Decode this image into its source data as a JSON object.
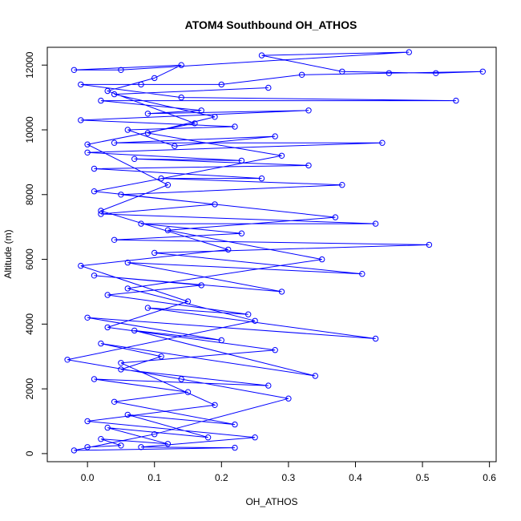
{
  "chart_data": {
    "type": "line",
    "title": "ATOM4 Southbound OH_ATHOS",
    "xlabel": "OH_ATHOS",
    "ylabel": "Altitude (m)",
    "xlim": [
      -0.06,
      0.61
    ],
    "ylim": [
      -250,
      12550
    ],
    "x_ticks": [
      0.0,
      0.1,
      0.2,
      0.3,
      0.4,
      0.5,
      0.6
    ],
    "x_tick_labels": [
      "0.0",
      "0.1",
      "0.2",
      "0.3",
      "0.4",
      "0.5",
      "0.6"
    ],
    "y_ticks": [
      0,
      2000,
      4000,
      6000,
      8000,
      10000,
      12000
    ],
    "y_tick_labels": [
      "0",
      "2000",
      "4000",
      "6000",
      "8000",
      "10000",
      "12000"
    ],
    "grid": false,
    "series_color": "#0000ff",
    "marker": "open-circle",
    "series": [
      {
        "points": [
          [
            0.0,
            200
          ],
          [
            0.05,
            250
          ],
          [
            0.02,
            450
          ],
          [
            0.12,
            300
          ],
          [
            0.03,
            800
          ],
          [
            0.18,
            500
          ],
          [
            0.06,
            1200
          ],
          [
            0.22,
            900
          ],
          [
            0.04,
            1600
          ],
          [
            0.15,
            1900
          ],
          [
            0.01,
            2300
          ],
          [
            0.27,
            2100
          ],
          [
            0.05,
            2600
          ],
          [
            0.11,
            3000
          ],
          [
            0.02,
            3400
          ],
          [
            0.34,
            2400
          ],
          [
            0.07,
            3800
          ],
          [
            0.2,
            3500
          ],
          [
            0.0,
            4200
          ],
          [
            0.43,
            3550
          ],
          [
            0.09,
            4500
          ],
          [
            0.24,
            4300
          ],
          [
            0.03,
            4900
          ],
          [
            0.17,
            5200
          ],
          [
            0.01,
            5500
          ],
          [
            0.29,
            5000
          ],
          [
            0.06,
            5900
          ],
          [
            0.41,
            5550
          ],
          [
            0.1,
            6200
          ],
          [
            0.51,
            6450
          ],
          [
            0.04,
            6600
          ],
          [
            0.23,
            6800
          ],
          [
            0.08,
            7100
          ],
          [
            0.43,
            7100
          ],
          [
            0.02,
            7400
          ],
          [
            0.19,
            7700
          ],
          [
            0.05,
            8000
          ],
          [
            0.38,
            8300
          ],
          [
            0.11,
            8500
          ],
          [
            0.26,
            8500
          ],
          [
            0.01,
            8800
          ],
          [
            0.33,
            8900
          ],
          [
            0.07,
            9100
          ],
          [
            0.23,
            9050
          ],
          [
            0.0,
            9300
          ],
          [
            0.44,
            9600
          ],
          [
            0.04,
            9600
          ],
          [
            0.28,
            9800
          ],
          [
            0.13,
            9500
          ],
          [
            0.06,
            10000
          ],
          [
            0.22,
            10100
          ],
          [
            -0.01,
            10300
          ],
          [
            0.33,
            10600
          ],
          [
            0.09,
            10500
          ],
          [
            0.17,
            10600
          ],
          [
            0.02,
            10900
          ],
          [
            0.55,
            10900
          ],
          [
            0.14,
            11000
          ],
          [
            -0.01,
            11400
          ],
          [
            0.08,
            11400
          ],
          [
            0.2,
            11400
          ],
          [
            0.32,
            11700
          ],
          [
            0.45,
            11750
          ],
          [
            0.59,
            11800
          ],
          [
            0.52,
            11750
          ],
          [
            0.38,
            11800
          ],
          [
            0.26,
            12300
          ],
          [
            0.48,
            12400
          ],
          [
            0.05,
            11850
          ],
          [
            -0.02,
            11850
          ],
          [
            0.14,
            12000
          ],
          [
            0.1,
            11600
          ],
          [
            0.03,
            11200
          ],
          [
            0.16,
            10200
          ],
          [
            0.0,
            9550
          ],
          [
            0.12,
            8300
          ],
          [
            0.02,
            7500
          ],
          [
            0.21,
            6300
          ],
          [
            -0.01,
            5800
          ],
          [
            0.15,
            4700
          ],
          [
            0.03,
            3900
          ],
          [
            0.28,
            3200
          ],
          [
            0.05,
            2800
          ],
          [
            0.19,
            1500
          ],
          [
            0.0,
            1000
          ],
          [
            0.25,
            500
          ],
          [
            0.08,
            200
          ],
          [
            0.22,
            180
          ],
          [
            -0.02,
            100
          ],
          [
            0.1,
            600
          ],
          [
            0.3,
            1700
          ],
          [
            0.14,
            2300
          ],
          [
            -0.03,
            2900
          ],
          [
            0.25,
            4100
          ],
          [
            0.06,
            5100
          ],
          [
            0.35,
            6000
          ],
          [
            0.12,
            6900
          ],
          [
            0.37,
            7300
          ],
          [
            0.01,
            8100
          ],
          [
            0.29,
            9200
          ],
          [
            0.09,
            9900
          ],
          [
            0.19,
            10400
          ],
          [
            0.04,
            11100
          ],
          [
            0.27,
            11300
          ]
        ]
      }
    ]
  }
}
